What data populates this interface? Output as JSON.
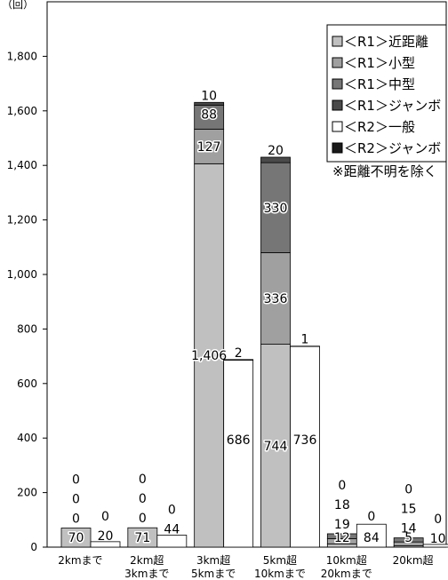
{
  "chart_data": {
    "type": "bar",
    "unit_label": "（回）",
    "note": "※距離不明を除く",
    "ylim": [
      0,
      2000
    ],
    "yticks": [
      0,
      200,
      400,
      600,
      800,
      1000,
      1200,
      1400,
      1600,
      1800
    ],
    "ytick_labels": [
      "0",
      "200",
      "400",
      "600",
      "800",
      "1,000",
      "1,200",
      "1,400",
      "1,600",
      "1,800"
    ],
    "categories": [
      [
        "2kmまで"
      ],
      [
        "2km超",
        "3kmまで"
      ],
      [
        "3km超",
        "5kmまで"
      ],
      [
        "5km超",
        "10kmまで"
      ],
      [
        "10km超",
        "20kmまで"
      ],
      [
        "20km超"
      ]
    ],
    "series": [
      {
        "name": "＜R1＞近距離",
        "group": "R1",
        "color": "#c0c0c0",
        "values": [
          70,
          71,
          1406,
          744,
          12,
          5
        ]
      },
      {
        "name": "＜R1＞小型",
        "group": "R1",
        "color": "#a0a0a0",
        "values": [
          0,
          0,
          127,
          336,
          19,
          14
        ]
      },
      {
        "name": "＜R1＞中型",
        "group": "R1",
        "color": "#767676",
        "values": [
          0,
          0,
          88,
          330,
          18,
          15
        ]
      },
      {
        "name": "＜R1＞ジャンボ",
        "group": "R1",
        "color": "#4a4a4a",
        "values": [
          0,
          0,
          10,
          20,
          0,
          0
        ]
      },
      {
        "name": "＜R2＞一般",
        "group": "R2",
        "color": "#ffffff",
        "values": [
          20,
          44,
          686,
          736,
          84,
          10
        ]
      },
      {
        "name": "＜R2＞ジャンボ",
        "group": "R2",
        "color": "#1a1a1a",
        "values": [
          0,
          0,
          2,
          1,
          0,
          0
        ]
      }
    ],
    "data_labels": {
      "R1": [
        [
          "70",
          "0",
          "0",
          "0"
        ],
        [
          "71",
          "0",
          "0",
          "0"
        ],
        [
          "1,406",
          "127",
          "88",
          "10"
        ],
        [
          "744",
          "336",
          "330",
          "20"
        ],
        [
          "12",
          "19",
          "18",
          "0"
        ],
        [
          "5",
          "14",
          "15",
          "0"
        ]
      ],
      "R2": [
        [
          "20",
          "0"
        ],
        [
          "44",
          "0"
        ],
        [
          "686",
          "2"
        ],
        [
          "736",
          "1"
        ],
        [
          "84",
          "0"
        ],
        [
          "10",
          "0"
        ]
      ]
    },
    "legend": {
      "position": "top-right"
    }
  }
}
